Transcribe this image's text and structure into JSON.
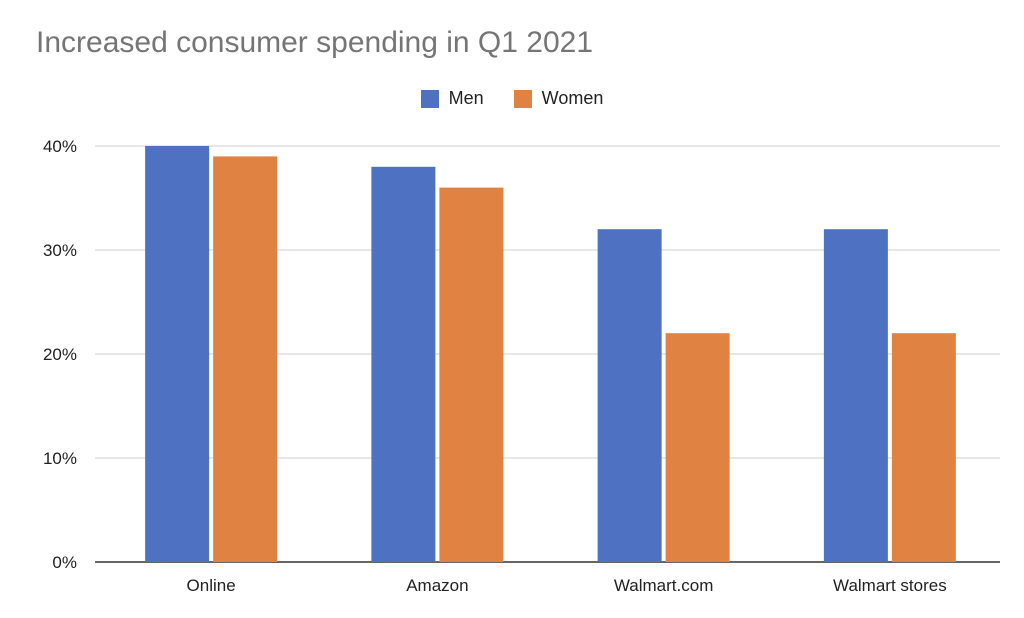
{
  "chart_data": {
    "type": "bar",
    "title": "Increased consumer spending in Q1 2021",
    "xlabel": "",
    "ylabel": "",
    "categories": [
      "Online",
      "Amazon",
      "Walmart.com",
      "Walmart stores"
    ],
    "series": [
      {
        "name": "Men",
        "color": "#4e72c1",
        "values": [
          40,
          38,
          32,
          32
        ]
      },
      {
        "name": "Women",
        "color": "#df8242",
        "values": [
          39,
          36,
          22,
          22
        ]
      }
    ],
    "ylim": [
      0,
      40
    ],
    "yticks": [
      0,
      10,
      20,
      30,
      40
    ],
    "ytick_labels": [
      "0%",
      "10%",
      "20%",
      "30%",
      "40%"
    ],
    "grid": true,
    "legend_position": "top"
  }
}
